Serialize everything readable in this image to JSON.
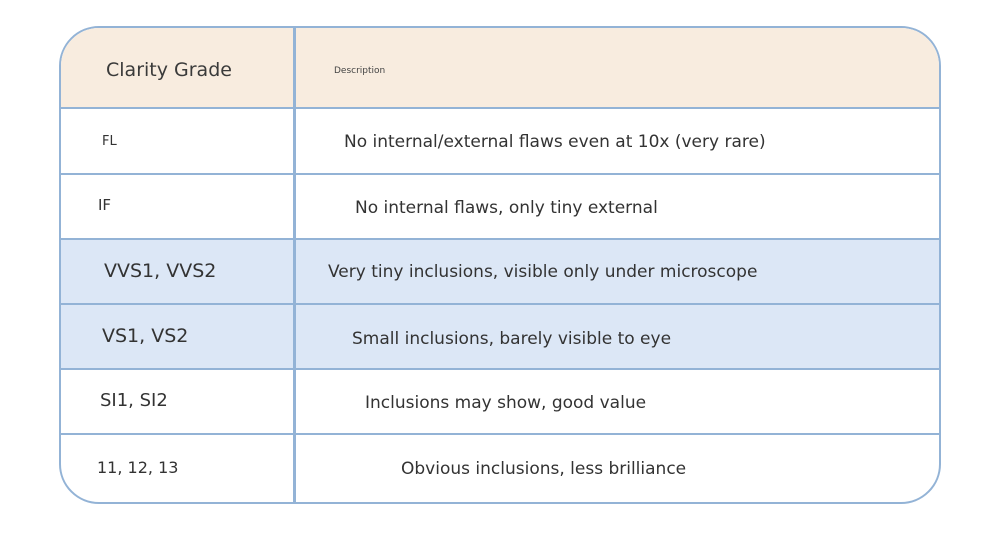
{
  "table": {
    "header": {
      "col1": "Clarity Grade",
      "col2": "Description"
    },
    "rows": [
      {
        "grade": "FL",
        "description": "No internal/external flaws even at 10x (very rare)"
      },
      {
        "grade": "IF",
        "description": "No internal flaws, only tiny external"
      },
      {
        "grade": "VVS1, VVS2",
        "description": "Very tiny inclusions, visible only under microscope"
      },
      {
        "grade": "VS1, VS2",
        "description": "Small inclusions, barely visible to eye"
      },
      {
        "grade": "SI1, SI2",
        "description": "Inclusions may show, good value"
      },
      {
        "grade": "11, 12, 13",
        "description": "Obvious inclusions, less brilliance"
      }
    ]
  },
  "colors": {
    "border": "#93b3d6",
    "header_bg": "#f8ecdf",
    "highlight_bg": "#dce7f6"
  }
}
